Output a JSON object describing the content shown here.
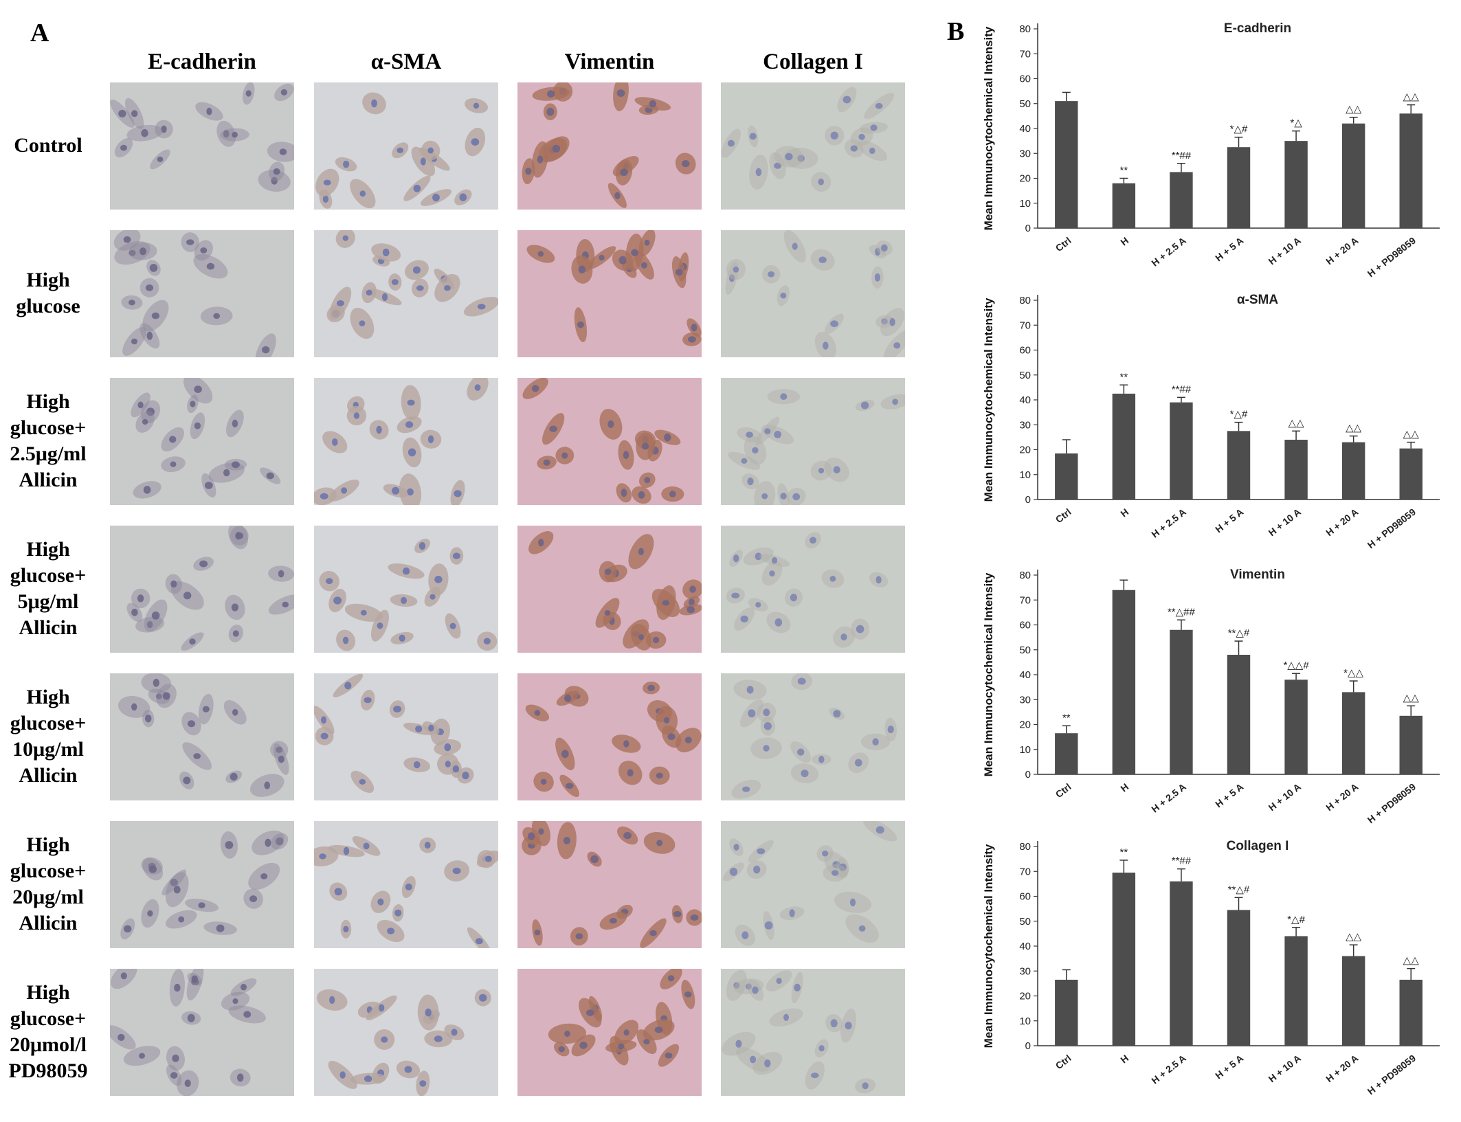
{
  "panel_letters": {
    "a": "A",
    "b": "B"
  },
  "grid": {
    "columns": [
      "E-cadherin",
      "α-SMA",
      "Vimentin",
      "Collagen I"
    ],
    "rows": [
      {
        "lines": [
          "Control"
        ]
      },
      {
        "lines": [
          "High",
          "glucose"
        ]
      },
      {
        "lines": [
          "High",
          "glucose+",
          "2.5μg/ml",
          "Allicin"
        ]
      },
      {
        "lines": [
          "High",
          "glucose+",
          "5μg/ml",
          "Allicin"
        ]
      },
      {
        "lines": [
          "High",
          "glucose+",
          "10μg/ml",
          "Allicin"
        ]
      },
      {
        "lines": [
          "High",
          "glucose+",
          "20μg/ml",
          "Allicin"
        ]
      },
      {
        "lines": [
          "High",
          "glucose+",
          "20μmol/l",
          "PD98059"
        ]
      }
    ],
    "stain_colors": {
      "E-cadherin": {
        "bg": "#c9cbcb",
        "cell": "#8f8598",
        "nucleus": "#6a6888"
      },
      "α-SMA": {
        "bg": "#d4d6da",
        "cell": "#b7a6a0",
        "nucleus": "#6b76ad"
      },
      "Vimentin": {
        "bg": "#d9b2bf",
        "cell": "#a8725e",
        "nucleus": "#6d6487"
      },
      "Collagen I": {
        "bg": "#c9cdc8",
        "cell": "#b2afa8",
        "nucleus": "#7e86b1"
      }
    }
  },
  "chart_data": [
    {
      "type": "bar",
      "title": "E-cadherin",
      "ylabel": "Mean Immunocytochemical Intensity",
      "ylim": [
        0,
        80
      ],
      "yticks": [
        "0",
        "10",
        "20",
        "30",
        "40",
        "50",
        "60",
        "70",
        "80"
      ],
      "categories": [
        "Ctrl",
        "H",
        "H + 2.5 A",
        "H + 5 A",
        "H + 10 A",
        "H + 20 A",
        "H + PD98059"
      ],
      "values": [
        51,
        18,
        22.5,
        32.5,
        35,
        42,
        46
      ],
      "errors": [
        3.5,
        2,
        3.5,
        4,
        4,
        2.5,
        3.5
      ],
      "annotations": [
        "",
        "**",
        "**##",
        "*△#",
        "*△",
        "△△",
        "△△"
      ]
    },
    {
      "type": "bar",
      "title": "α-SMA",
      "ylabel": "Mean Immunocytochemical Intensity",
      "ylim": [
        0,
        80
      ],
      "yticks": [
        "0",
        "10",
        "20",
        "30",
        "40",
        "50",
        "60",
        "70",
        "80"
      ],
      "categories": [
        "Ctrl",
        "H",
        "H + 2.5 A",
        "H + 5 A",
        "H + 10 A",
        "H + 20 A",
        "H + PD98059"
      ],
      "values": [
        18.5,
        42.5,
        39,
        27.5,
        24,
        23,
        20.5
      ],
      "errors": [
        5.5,
        3.5,
        2,
        3.5,
        3.5,
        2.5,
        2.5
      ],
      "annotations": [
        "",
        "**",
        "**##",
        "*△#",
        "△△",
        "△△",
        "△△"
      ]
    },
    {
      "type": "bar",
      "title": "Vimentin",
      "ylabel": "Mean Immunocytochemical Intensity",
      "ylim": [
        0,
        80
      ],
      "yticks": [
        "0",
        "10",
        "20",
        "30",
        "40",
        "50",
        "60",
        "70",
        "80"
      ],
      "categories": [
        "Ctrl",
        "H",
        "H + 2.5 A",
        "H + 5 A",
        "H + 10 A",
        "H + 20 A",
        "H + PD98059"
      ],
      "values": [
        16.5,
        74,
        58,
        48,
        38,
        33,
        23.5
      ],
      "errors": [
        3,
        4,
        4,
        5.5,
        2.5,
        4.5,
        4
      ],
      "annotations": [
        "**",
        "",
        "**△##",
        "**△#",
        "*△△#",
        "*△△",
        "△△"
      ]
    },
    {
      "type": "bar",
      "title": "Collagen I",
      "ylabel": "Mean Immunocytochemical Intensity",
      "ylim": [
        0,
        80
      ],
      "yticks": [
        "0",
        "10",
        "20",
        "30",
        "40",
        "50",
        "60",
        "70",
        "80"
      ],
      "categories": [
        "Ctrl",
        "H",
        "H + 2.5 A",
        "H + 5 A",
        "H + 10 A",
        "H + 20 A",
        "H + PD98059"
      ],
      "values": [
        26.5,
        69.5,
        66,
        54.5,
        44,
        36,
        26.5
      ],
      "errors": [
        4,
        5,
        5,
        5,
        3.5,
        4.5,
        4.5
      ],
      "annotations": [
        "",
        "**",
        "**##",
        "**△#",
        "*△#",
        "△△",
        "△△"
      ]
    }
  ]
}
